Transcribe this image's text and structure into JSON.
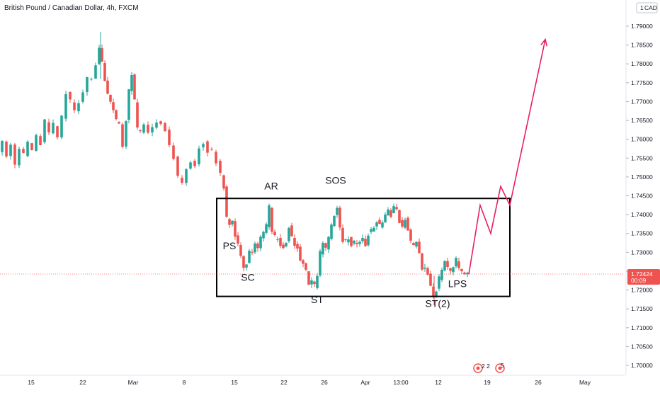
{
  "header": {
    "symbol_title": "British Pound / Canadian Dollar, 4h, FXCM",
    "currency_badge": "CAD",
    "currency_badge_prefix": "1"
  },
  "chart_data": {
    "type": "candlestick",
    "title": "British Pound / Canadian Dollar, 4h, FXCM",
    "y_axis_side": "right",
    "ylim": [
      1.6975,
      1.7925
    ],
    "y_ticks": [
      "1.79000",
      "1.78500",
      "1.78000",
      "1.77500",
      "1.77000",
      "1.76500",
      "1.76000",
      "1.75500",
      "1.75000",
      "1.74500",
      "1.74000",
      "1.73500",
      "1.73000",
      "1.72500",
      "1.72000",
      "1.71500",
      "1.71000",
      "1.70500",
      "1.70000"
    ],
    "y_tick_values": [
      1.79,
      1.785,
      1.78,
      1.775,
      1.77,
      1.765,
      1.76,
      1.755,
      1.75,
      1.745,
      1.74,
      1.735,
      1.73,
      1.725,
      1.72,
      1.715,
      1.71,
      1.705,
      1.7
    ],
    "x_ticks": [
      "15",
      "22",
      "Mar",
      "8",
      "15",
      "22",
      "26",
      "Apr",
      "13:00",
      "12",
      "19",
      "26",
      "May"
    ],
    "x_tick_positions": [
      44,
      117,
      188,
      260,
      331,
      401,
      458,
      516,
      566,
      619,
      688,
      760,
      826
    ],
    "current_price": {
      "value": 1.72424,
      "label": "1.72424",
      "countdown": "00:09"
    },
    "up_color": "#26a69a",
    "down_color": "#ef5350",
    "projection_color": "#e91e63",
    "price_path": [
      [
        0,
        1.757
      ],
      [
        6,
        1.759
      ],
      [
        12,
        1.7555
      ],
      [
        18,
        1.759
      ],
      [
        24,
        1.753
      ],
      [
        30,
        1.7575
      ],
      [
        36,
        1.756
      ],
      [
        42,
        1.759
      ],
      [
        48,
        1.7575
      ],
      [
        54,
        1.761
      ],
      [
        60,
        1.759
      ],
      [
        66,
        1.765
      ],
      [
        72,
        1.762
      ],
      [
        78,
        1.764
      ],
      [
        84,
        1.76
      ],
      [
        90,
        1.766
      ],
      [
        96,
        1.772
      ],
      [
        102,
        1.77
      ],
      [
        108,
        1.768
      ],
      [
        114,
        1.77
      ],
      [
        120,
        1.772
      ],
      [
        126,
        1.776
      ],
      [
        132,
        1.776
      ],
      [
        138,
        1.78
      ],
      [
        142,
        1.784
      ],
      [
        146,
        1.78
      ],
      [
        150,
        1.776
      ],
      [
        154,
        1.772
      ],
      [
        158,
        1.77
      ],
      [
        162,
        1.768
      ],
      [
        166,
        1.765
      ],
      [
        170,
        1.764
      ],
      [
        176,
        1.758
      ],
      [
        180,
        1.765
      ],
      [
        184,
        1.773
      ],
      [
        188,
        1.777
      ],
      [
        192,
        1.77
      ],
      [
        196,
        1.763
      ],
      [
        200,
        1.762
      ],
      [
        206,
        1.764
      ],
      [
        212,
        1.762
      ],
      [
        218,
        1.763
      ],
      [
        224,
        1.765
      ],
      [
        230,
        1.764
      ],
      [
        236,
        1.762
      ],
      [
        242,
        1.758
      ],
      [
        248,
        1.755
      ],
      [
        254,
        1.75
      ],
      [
        260,
        1.748
      ],
      [
        266,
        1.752
      ],
      [
        272,
        1.754
      ],
      [
        278,
        1.753
      ],
      [
        284,
        1.758
      ],
      [
        290,
        1.759
      ],
      [
        296,
        1.757
      ],
      [
        302,
        1.757
      ],
      [
        308,
        1.754
      ],
      [
        314,
        1.751
      ],
      [
        318,
        1.747
      ],
      [
        322,
        1.739
      ],
      [
        326,
        1.737
      ],
      [
        330,
        1.738
      ],
      [
        334,
        1.734
      ],
      [
        338,
        1.732
      ],
      [
        342,
        1.729
      ],
      [
        346,
        1.726
      ],
      [
        350,
        1.727
      ],
      [
        354,
        1.73
      ],
      [
        358,
        1.73
      ],
      [
        362,
        1.732
      ],
      [
        366,
        1.731
      ],
      [
        370,
        1.734
      ],
      [
        374,
        1.735
      ],
      [
        378,
        1.737
      ],
      [
        382,
        1.742
      ],
      [
        386,
        1.736
      ],
      [
        390,
        1.734
      ],
      [
        394,
        1.734
      ],
      [
        398,
        1.732
      ],
      [
        402,
        1.731
      ],
      [
        406,
        1.733
      ],
      [
        410,
        1.737
      ],
      [
        414,
        1.734
      ],
      [
        418,
        1.732
      ],
      [
        422,
        1.731
      ],
      [
        426,
        1.728
      ],
      [
        430,
        1.727
      ],
      [
        434,
        1.725
      ],
      [
        438,
        1.722
      ],
      [
        442,
        1.722
      ],
      [
        446,
        1.721
      ],
      [
        450,
        1.724
      ],
      [
        454,
        1.73
      ],
      [
        458,
        1.732
      ],
      [
        462,
        1.731
      ],
      [
        466,
        1.734
      ],
      [
        470,
        1.737
      ],
      [
        474,
        1.74
      ],
      [
        478,
        1.742
      ],
      [
        482,
        1.736
      ],
      [
        486,
        1.733
      ],
      [
        490,
        1.733
      ],
      [
        494,
        1.734
      ],
      [
        498,
        1.732
      ],
      [
        502,
        1.733
      ],
      [
        506,
        1.732
      ],
      [
        510,
        1.733
      ],
      [
        514,
        1.734
      ],
      [
        518,
        1.732
      ],
      [
        522,
        1.735
      ],
      [
        526,
        1.736
      ],
      [
        530,
        1.737
      ],
      [
        534,
        1.738
      ],
      [
        538,
        1.737
      ],
      [
        542,
        1.738
      ],
      [
        546,
        1.74
      ],
      [
        550,
        1.741
      ],
      [
        554,
        1.74
      ],
      [
        558,
        1.742
      ],
      [
        562,
        1.741
      ],
      [
        566,
        1.738
      ],
      [
        570,
        1.737
      ],
      [
        574,
        1.739
      ],
      [
        578,
        1.736
      ],
      [
        582,
        1.733
      ],
      [
        586,
        1.732
      ],
      [
        590,
        1.733
      ],
      [
        594,
        1.73
      ],
      [
        598,
        1.726
      ],
      [
        602,
        1.726
      ],
      [
        606,
        1.724
      ],
      [
        610,
        1.721
      ],
      [
        614,
        1.718
      ],
      [
        618,
        1.72
      ],
      [
        622,
        1.723
      ],
      [
        626,
        1.725
      ],
      [
        630,
        1.728
      ],
      [
        634,
        1.726
      ],
      [
        638,
        1.725
      ],
      [
        642,
        1.726
      ],
      [
        646,
        1.728
      ],
      [
        650,
        1.726
      ],
      [
        654,
        1.725
      ],
      [
        658,
        1.7245
      ],
      [
        662,
        1.7242
      ]
    ],
    "projection_path": [
      [
        662,
        1.7242
      ],
      [
        678,
        1.7425
      ],
      [
        693,
        1.735
      ],
      [
        707,
        1.7475
      ],
      [
        720,
        1.7425
      ],
      [
        770,
        1.7865
      ]
    ],
    "annotations": [
      {
        "label": "AR",
        "x": 383,
        "y": 1.7467
      },
      {
        "label": "SOS",
        "x": 474,
        "y": 1.7482
      },
      {
        "label": "PS",
        "x": 324,
        "y": 1.7308
      },
      {
        "label": "SC",
        "x": 350,
        "y": 1.7225
      },
      {
        "label": "ST",
        "x": 448,
        "y": 1.7165
      },
      {
        "label": "ST(2)",
        "x": 618,
        "y": 1.7155
      },
      {
        "label": "LPS",
        "x": 646,
        "y": 1.7208
      }
    ],
    "range_box": {
      "x0": 306,
      "x1": 720,
      "y_top": 1.7443,
      "y_bottom": 1.7183
    }
  },
  "events": {
    "badge_1": "2 2",
    "badge_2": "5"
  }
}
